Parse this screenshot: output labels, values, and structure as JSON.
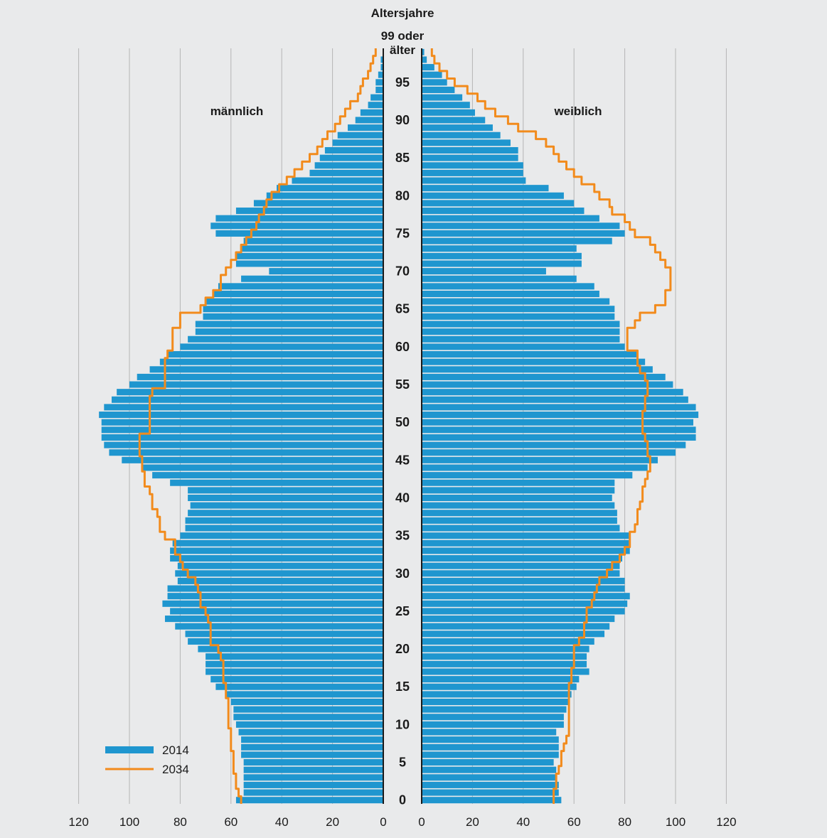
{
  "chart_data": {
    "type": "bar",
    "subtype": "population-pyramid",
    "title": "Altersjahre",
    "top_age_label_line1": "99 oder",
    "top_age_label_line2": "älter",
    "left_label": "männlich",
    "right_label": "weiblich",
    "x_ticks_left": [
      "120",
      "100",
      "80",
      "60",
      "40",
      "20",
      "0"
    ],
    "x_ticks_right": [
      "0",
      "20",
      "40",
      "60",
      "80",
      "100",
      "120"
    ],
    "y_ticks": [
      "0",
      "5",
      "10",
      "15",
      "20",
      "25",
      "30",
      "35",
      "40",
      "45",
      "50",
      "55",
      "60",
      "65",
      "70",
      "75",
      "80",
      "85",
      "90",
      "95"
    ],
    "xlim": [
      0,
      120
    ],
    "ages": [
      0,
      1,
      2,
      3,
      4,
      5,
      6,
      7,
      8,
      9,
      10,
      11,
      12,
      13,
      14,
      15,
      16,
      17,
      18,
      19,
      20,
      21,
      22,
      23,
      24,
      25,
      26,
      27,
      28,
      29,
      30,
      31,
      32,
      33,
      34,
      35,
      36,
      37,
      38,
      39,
      40,
      41,
      42,
      43,
      44,
      45,
      46,
      47,
      48,
      49,
      50,
      51,
      52,
      53,
      54,
      55,
      56,
      57,
      58,
      59,
      60,
      61,
      62,
      63,
      64,
      65,
      66,
      67,
      68,
      69,
      70,
      71,
      72,
      73,
      74,
      75,
      76,
      77,
      78,
      79,
      80,
      81,
      82,
      83,
      84,
      85,
      86,
      87,
      88,
      89,
      90,
      91,
      92,
      93,
      94,
      95,
      96,
      97,
      98,
      99
    ],
    "colors": {
      "bars": "#1f96cf",
      "line": "#f28b1c",
      "grid": "#b5b5b5",
      "background": "#e9eaeb",
      "axis": "#1a1a1a"
    },
    "series": [
      {
        "name": "2014",
        "kind": "bars",
        "male": [
          58,
          55,
          55,
          55,
          55,
          55,
          56,
          56,
          56,
          57,
          58,
          59,
          59,
          60,
          62,
          66,
          68,
          70,
          70,
          70,
          73,
          77,
          78,
          82,
          86,
          84,
          87,
          85,
          85,
          81,
          82,
          81,
          84,
          84,
          83,
          80,
          78,
          78,
          77,
          76,
          77,
          77,
          84,
          91,
          95,
          103,
          108,
          110,
          111,
          111,
          111,
          112,
          110,
          107,
          105,
          100,
          97,
          92,
          88,
          85,
          80,
          77,
          74,
          74,
          71,
          71,
          70,
          67,
          65,
          56,
          45,
          58,
          58,
          56,
          55,
          66,
          68,
          66,
          58,
          51,
          46,
          42,
          36,
          29,
          27,
          25,
          23,
          20,
          18,
          14,
          11,
          9,
          6,
          5,
          3,
          3,
          2,
          1,
          1,
          0
        ],
        "female": [
          55,
          54,
          54,
          53,
          53,
          52,
          54,
          54,
          54,
          53,
          56,
          56,
          57,
          58,
          59,
          61,
          62,
          66,
          65,
          65,
          66,
          68,
          72,
          74,
          76,
          80,
          81,
          82,
          80,
          80,
          78,
          78,
          79,
          82,
          82,
          82,
          78,
          77,
          77,
          76,
          75,
          76,
          76,
          83,
          89,
          93,
          100,
          104,
          108,
          108,
          107,
          109,
          108,
          105,
          103,
          99,
          96,
          91,
          88,
          85,
          80,
          78,
          78,
          78,
          76,
          76,
          74,
          70,
          68,
          61,
          49,
          63,
          63,
          61,
          75,
          80,
          78,
          70,
          64,
          60,
          56,
          50,
          41,
          40,
          40,
          38,
          38,
          35,
          31,
          28,
          25,
          21,
          19,
          16,
          13,
          10,
          8,
          5,
          2,
          1
        ]
      },
      {
        "name": "2034",
        "kind": "line",
        "male": [
          56,
          57,
          58,
          58,
          59,
          59,
          59,
          60,
          60,
          60,
          61,
          61,
          61,
          61,
          62,
          62,
          63,
          63,
          63,
          64,
          65,
          68,
          68,
          68,
          69,
          70,
          72,
          72,
          73,
          74,
          77,
          79,
          80,
          82,
          82,
          86,
          88,
          88,
          89,
          91,
          91,
          92,
          94,
          94,
          95,
          95,
          96,
          96,
          96,
          92,
          92,
          92,
          92,
          92,
          91,
          86,
          86,
          86,
          86,
          85,
          83,
          83,
          83,
          80,
          80,
          72,
          70,
          67,
          64,
          64,
          62,
          60,
          58,
          56,
          54,
          52,
          50,
          49,
          47,
          46,
          44,
          41,
          38,
          35,
          32,
          29,
          26,
          24,
          22,
          19,
          17,
          15,
          13,
          10,
          9,
          8,
          6,
          5,
          4,
          3
        ],
        "female": [
          52,
          52,
          53,
          53,
          54,
          55,
          55,
          56,
          57,
          58,
          58,
          58,
          58,
          58,
          58,
          58,
          59,
          59,
          60,
          60,
          60,
          62,
          64,
          64,
          65,
          65,
          67,
          68,
          69,
          70,
          73,
          75,
          78,
          80,
          82,
          82,
          84,
          85,
          85,
          86,
          87,
          87,
          88,
          89,
          90,
          90,
          89,
          89,
          88,
          87,
          87,
          87,
          88,
          88,
          89,
          89,
          88,
          86,
          85,
          85,
          81,
          81,
          81,
          84,
          86,
          92,
          96,
          96,
          98,
          98,
          98,
          96,
          94,
          92,
          90,
          84,
          82,
          80,
          75,
          74,
          70,
          68,
          63,
          60,
          57,
          54,
          52,
          49,
          45,
          38,
          34,
          29,
          25,
          22,
          18,
          13,
          10,
          7,
          5,
          4
        ]
      }
    ],
    "legend": [
      {
        "label": "2014",
        "kind": "bar"
      },
      {
        "label": "2034",
        "kind": "line"
      }
    ]
  }
}
